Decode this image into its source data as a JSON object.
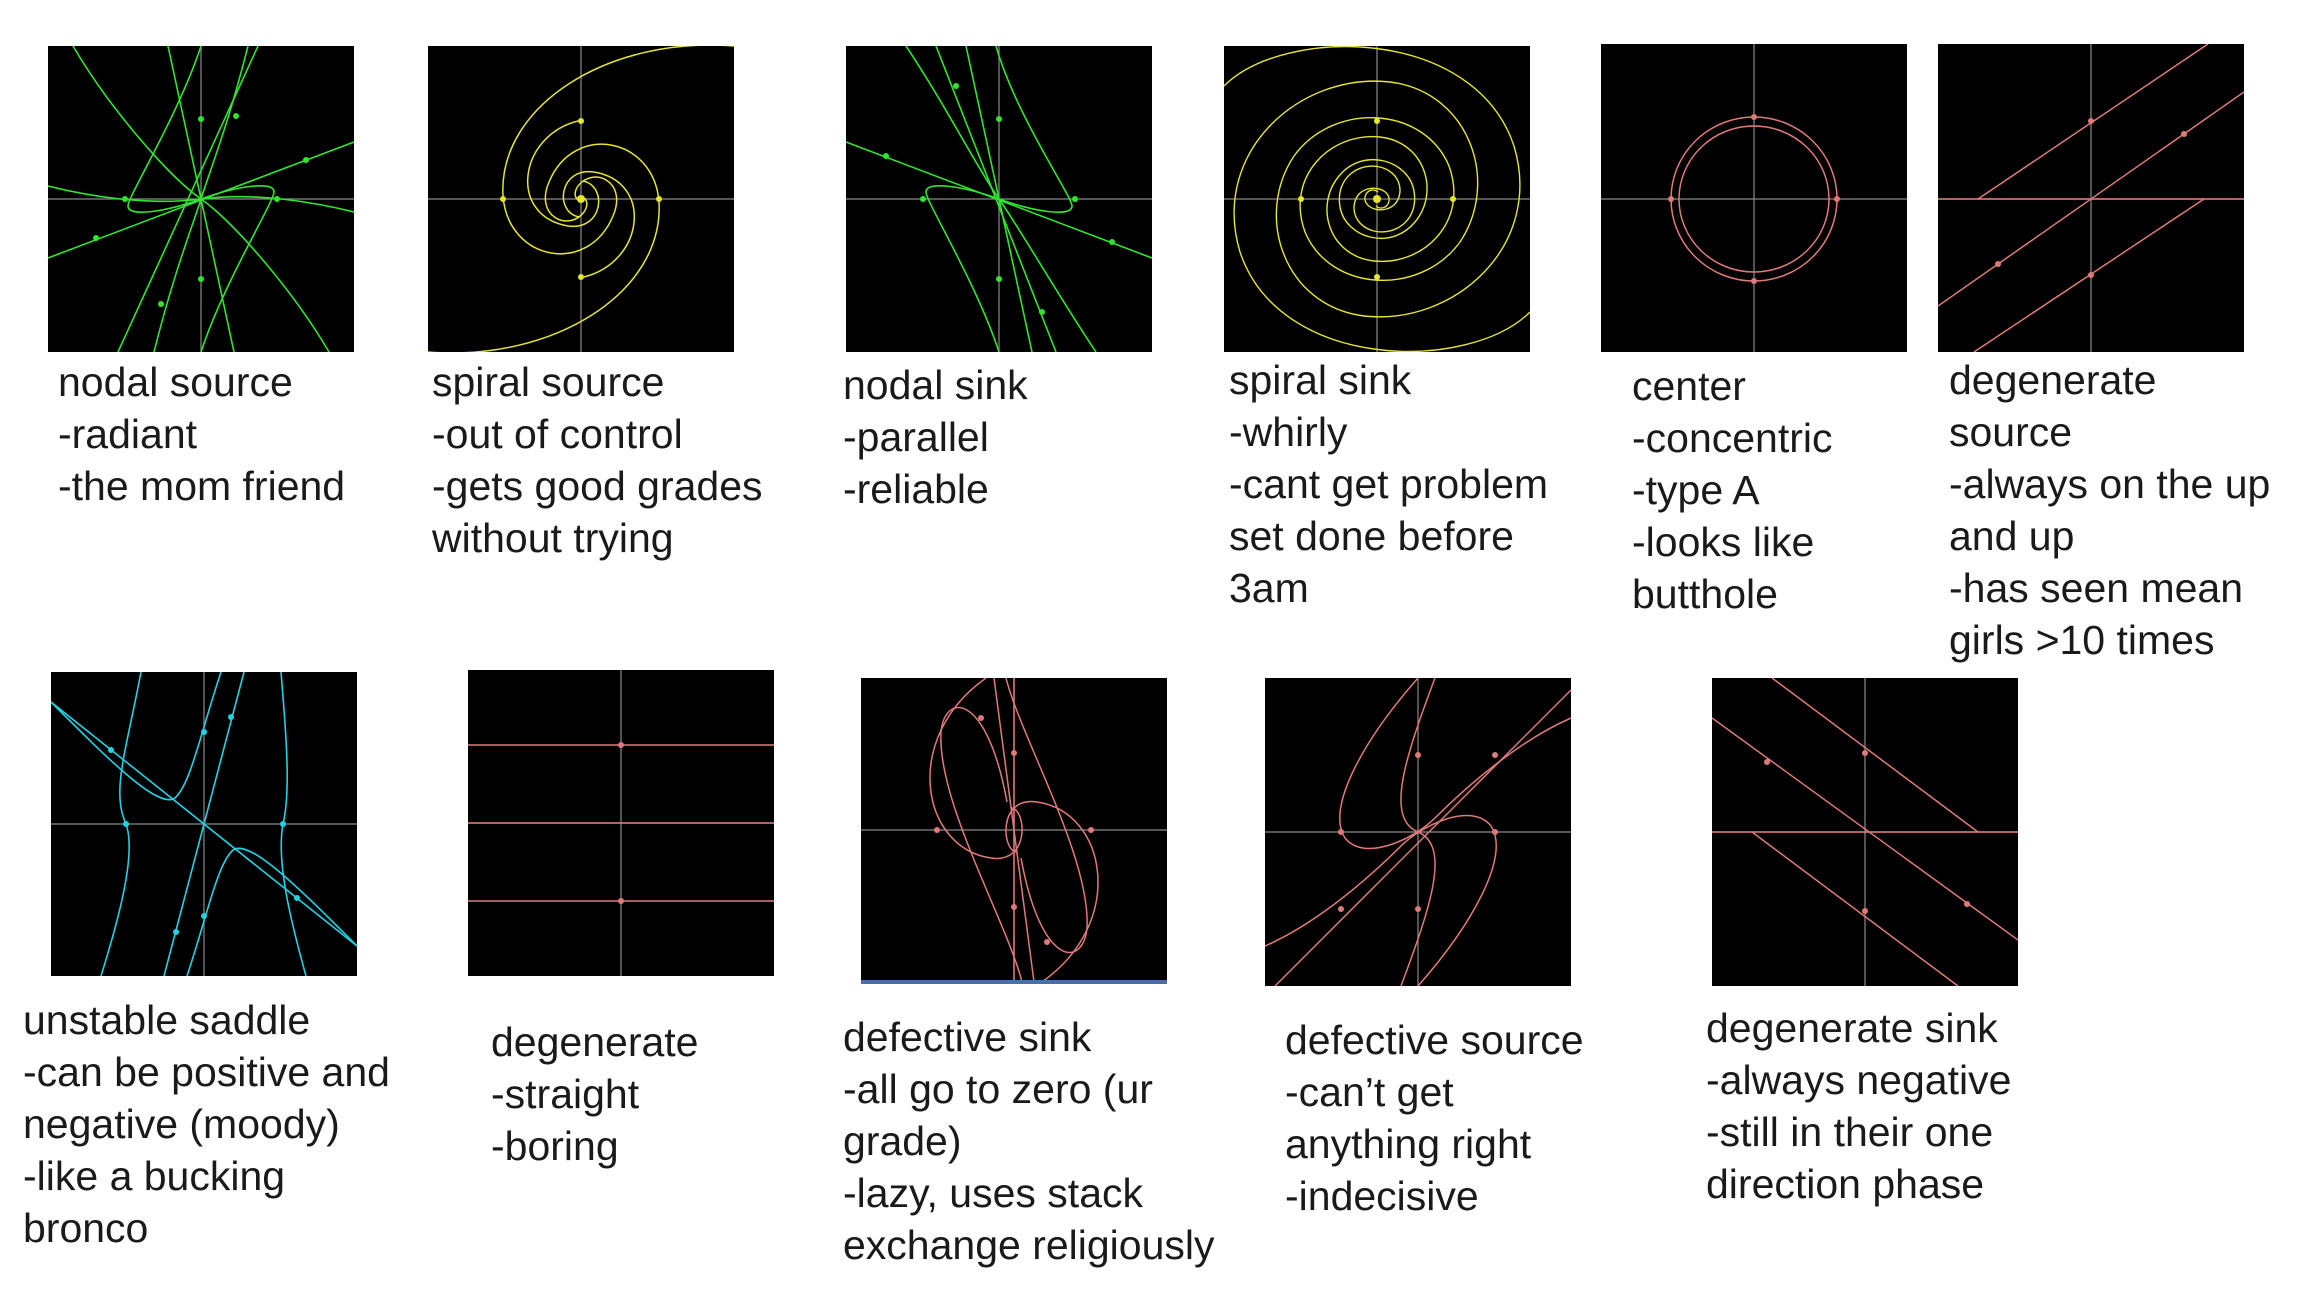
{
  "colors": {
    "background": "#000000",
    "axes": "#8a8a8a",
    "green": "#2ee62e",
    "yellow": "#e6e62e",
    "pink": "#e07a7a",
    "cyan": "#22d3e6"
  },
  "portraits": [
    {
      "id": "nodal-source",
      "color": "green",
      "caption": [
        "nodal source",
        "-radiant",
        "-the mom friend"
      ]
    },
    {
      "id": "spiral-source",
      "color": "yellow",
      "caption": [
        "spiral source",
        "-out of control",
        "-gets good grades",
        "without trying"
      ]
    },
    {
      "id": "nodal-sink",
      "color": "green",
      "caption": [
        "nodal sink",
        "-parallel",
        "-reliable"
      ]
    },
    {
      "id": "spiral-sink",
      "color": "yellow",
      "caption": [
        "spiral sink",
        "-whirly",
        "-cant get problem",
        "set done before",
        "3am"
      ]
    },
    {
      "id": "center",
      "color": "pink",
      "caption": [
        "center",
        "-concentric",
        "-type A",
        "-looks like",
        "butthole"
      ]
    },
    {
      "id": "degenerate-source",
      "color": "pink",
      "caption": [
        "degenerate",
        "source",
        "-always on the up",
        "and up",
        "-has seen mean",
        "girls >10 times"
      ]
    },
    {
      "id": "unstable-saddle",
      "color": "cyan",
      "caption": [
        "unstable saddle",
        "-can be positive and",
        "negative (moody)",
        "-like a bucking",
        "bronco"
      ]
    },
    {
      "id": "degenerate",
      "color": "pink",
      "caption": [
        "degenerate",
        "-straight",
        "-boring"
      ]
    },
    {
      "id": "defective-sink",
      "color": "pink",
      "caption": [
        "defective sink",
        "-all go to zero (ur",
        "grade)",
        "-lazy, uses stack",
        "exchange religiously"
      ]
    },
    {
      "id": "defective-source",
      "color": "pink",
      "caption": [
        "defective source",
        "-can’t get",
        "anything right",
        "-indecisive"
      ]
    },
    {
      "id": "degenerate-sink",
      "color": "pink",
      "caption": [
        "degenerate sink",
        "-always negative",
        "-still in their one",
        "direction phase"
      ]
    }
  ]
}
